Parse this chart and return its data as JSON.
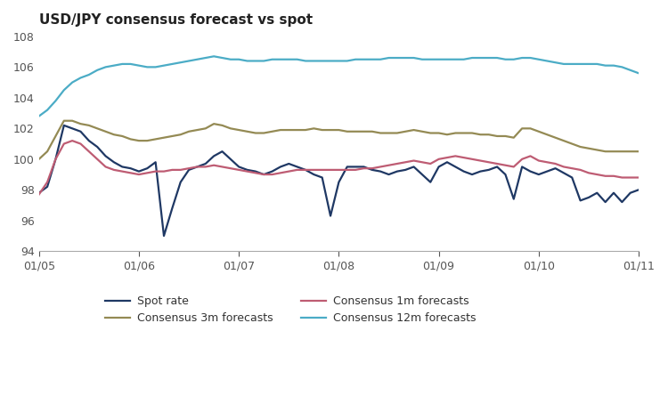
{
  "title": "USD/JPY consensus forecast vs spot",
  "background_color": "#ffffff",
  "ylim": [
    94,
    108
  ],
  "yticks": [
    94,
    96,
    98,
    100,
    102,
    104,
    106,
    108
  ],
  "xtick_labels": [
    "01/05",
    "01/06",
    "01/07",
    "01/08",
    "01/09",
    "01/10",
    "01/11"
  ],
  "title_fontsize": 11,
  "tick_fontsize": 9,
  "legend_fontsize": 9,
  "series": {
    "spot_rate": {
      "label": "Spot rate",
      "color": "#1f3864",
      "linewidth": 1.6,
      "values": [
        97.8,
        98.2,
        100.0,
        102.2,
        102.0,
        101.8,
        101.2,
        100.8,
        100.2,
        99.8,
        99.5,
        99.4,
        99.2,
        99.4,
        99.8,
        95.0,
        96.8,
        98.5,
        99.3,
        99.5,
        99.7,
        100.2,
        100.5,
        100.0,
        99.5,
        99.3,
        99.2,
        99.0,
        99.2,
        99.5,
        99.7,
        99.5,
        99.3,
        99.0,
        98.8,
        96.3,
        98.5,
        99.5,
        99.5,
        99.5,
        99.3,
        99.2,
        99.0,
        99.2,
        99.3,
        99.5,
        99.0,
        98.5,
        99.5,
        99.8,
        99.5,
        99.2,
        99.0,
        99.2,
        99.3,
        99.5,
        99.0,
        97.4,
        99.5,
        99.2,
        99.0,
        99.2,
        99.4,
        99.1,
        98.8,
        97.3,
        97.5,
        97.8,
        97.2,
        97.8,
        97.2,
        97.8,
        98.0
      ]
    },
    "consensus_1m": {
      "label": "Consensus 1m forecasts",
      "color": "#be5c73",
      "linewidth": 1.6,
      "values": [
        97.7,
        98.5,
        100.0,
        101.0,
        101.2,
        101.0,
        100.5,
        100.0,
        99.5,
        99.3,
        99.2,
        99.1,
        99.0,
        99.1,
        99.2,
        99.2,
        99.3,
        99.3,
        99.4,
        99.5,
        99.5,
        99.6,
        99.5,
        99.4,
        99.3,
        99.2,
        99.1,
        99.0,
        99.0,
        99.1,
        99.2,
        99.3,
        99.3,
        99.3,
        99.3,
        99.3,
        99.3,
        99.3,
        99.3,
        99.4,
        99.4,
        99.5,
        99.6,
        99.7,
        99.8,
        99.9,
        99.8,
        99.7,
        100.0,
        100.1,
        100.2,
        100.1,
        100.0,
        99.9,
        99.8,
        99.7,
        99.6,
        99.5,
        100.0,
        100.2,
        99.9,
        99.8,
        99.7,
        99.5,
        99.4,
        99.3,
        99.1,
        99.0,
        98.9,
        98.9,
        98.8,
        98.8,
        98.8
      ]
    },
    "consensus_3m": {
      "label": "Consensus 3m forecasts",
      "color": "#948a54",
      "linewidth": 1.6,
      "values": [
        100.0,
        100.5,
        101.5,
        102.5,
        102.5,
        102.3,
        102.2,
        102.0,
        101.8,
        101.6,
        101.5,
        101.3,
        101.2,
        101.2,
        101.3,
        101.4,
        101.5,
        101.6,
        101.8,
        101.9,
        102.0,
        102.3,
        102.2,
        102.0,
        101.9,
        101.8,
        101.7,
        101.7,
        101.8,
        101.9,
        101.9,
        101.9,
        101.9,
        102.0,
        101.9,
        101.9,
        101.9,
        101.8,
        101.8,
        101.8,
        101.8,
        101.7,
        101.7,
        101.7,
        101.8,
        101.9,
        101.8,
        101.7,
        101.7,
        101.6,
        101.7,
        101.7,
        101.7,
        101.6,
        101.6,
        101.5,
        101.5,
        101.4,
        102.0,
        102.0,
        101.8,
        101.6,
        101.4,
        101.2,
        101.0,
        100.8,
        100.7,
        100.6,
        100.5,
        100.5,
        100.5,
        100.5,
        100.5
      ]
    },
    "consensus_12m": {
      "label": "Consensus 12m forecasts",
      "color": "#4bacc6",
      "linewidth": 1.6,
      "values": [
        102.8,
        103.2,
        103.8,
        104.5,
        105.0,
        105.3,
        105.5,
        105.8,
        106.0,
        106.1,
        106.2,
        106.2,
        106.1,
        106.0,
        106.0,
        106.1,
        106.2,
        106.3,
        106.4,
        106.5,
        106.6,
        106.7,
        106.6,
        106.5,
        106.5,
        106.4,
        106.4,
        106.4,
        106.5,
        106.5,
        106.5,
        106.5,
        106.4,
        106.4,
        106.4,
        106.4,
        106.4,
        106.4,
        106.5,
        106.5,
        106.5,
        106.5,
        106.6,
        106.6,
        106.6,
        106.6,
        106.5,
        106.5,
        106.5,
        106.5,
        106.5,
        106.5,
        106.6,
        106.6,
        106.6,
        106.6,
        106.5,
        106.5,
        106.6,
        106.6,
        106.5,
        106.4,
        106.3,
        106.2,
        106.2,
        106.2,
        106.2,
        106.2,
        106.1,
        106.1,
        106.0,
        105.8,
        105.6
      ]
    }
  },
  "n_points": 73,
  "x_tick_positions": [
    0,
    12,
    24,
    36,
    48,
    60,
    72
  ]
}
